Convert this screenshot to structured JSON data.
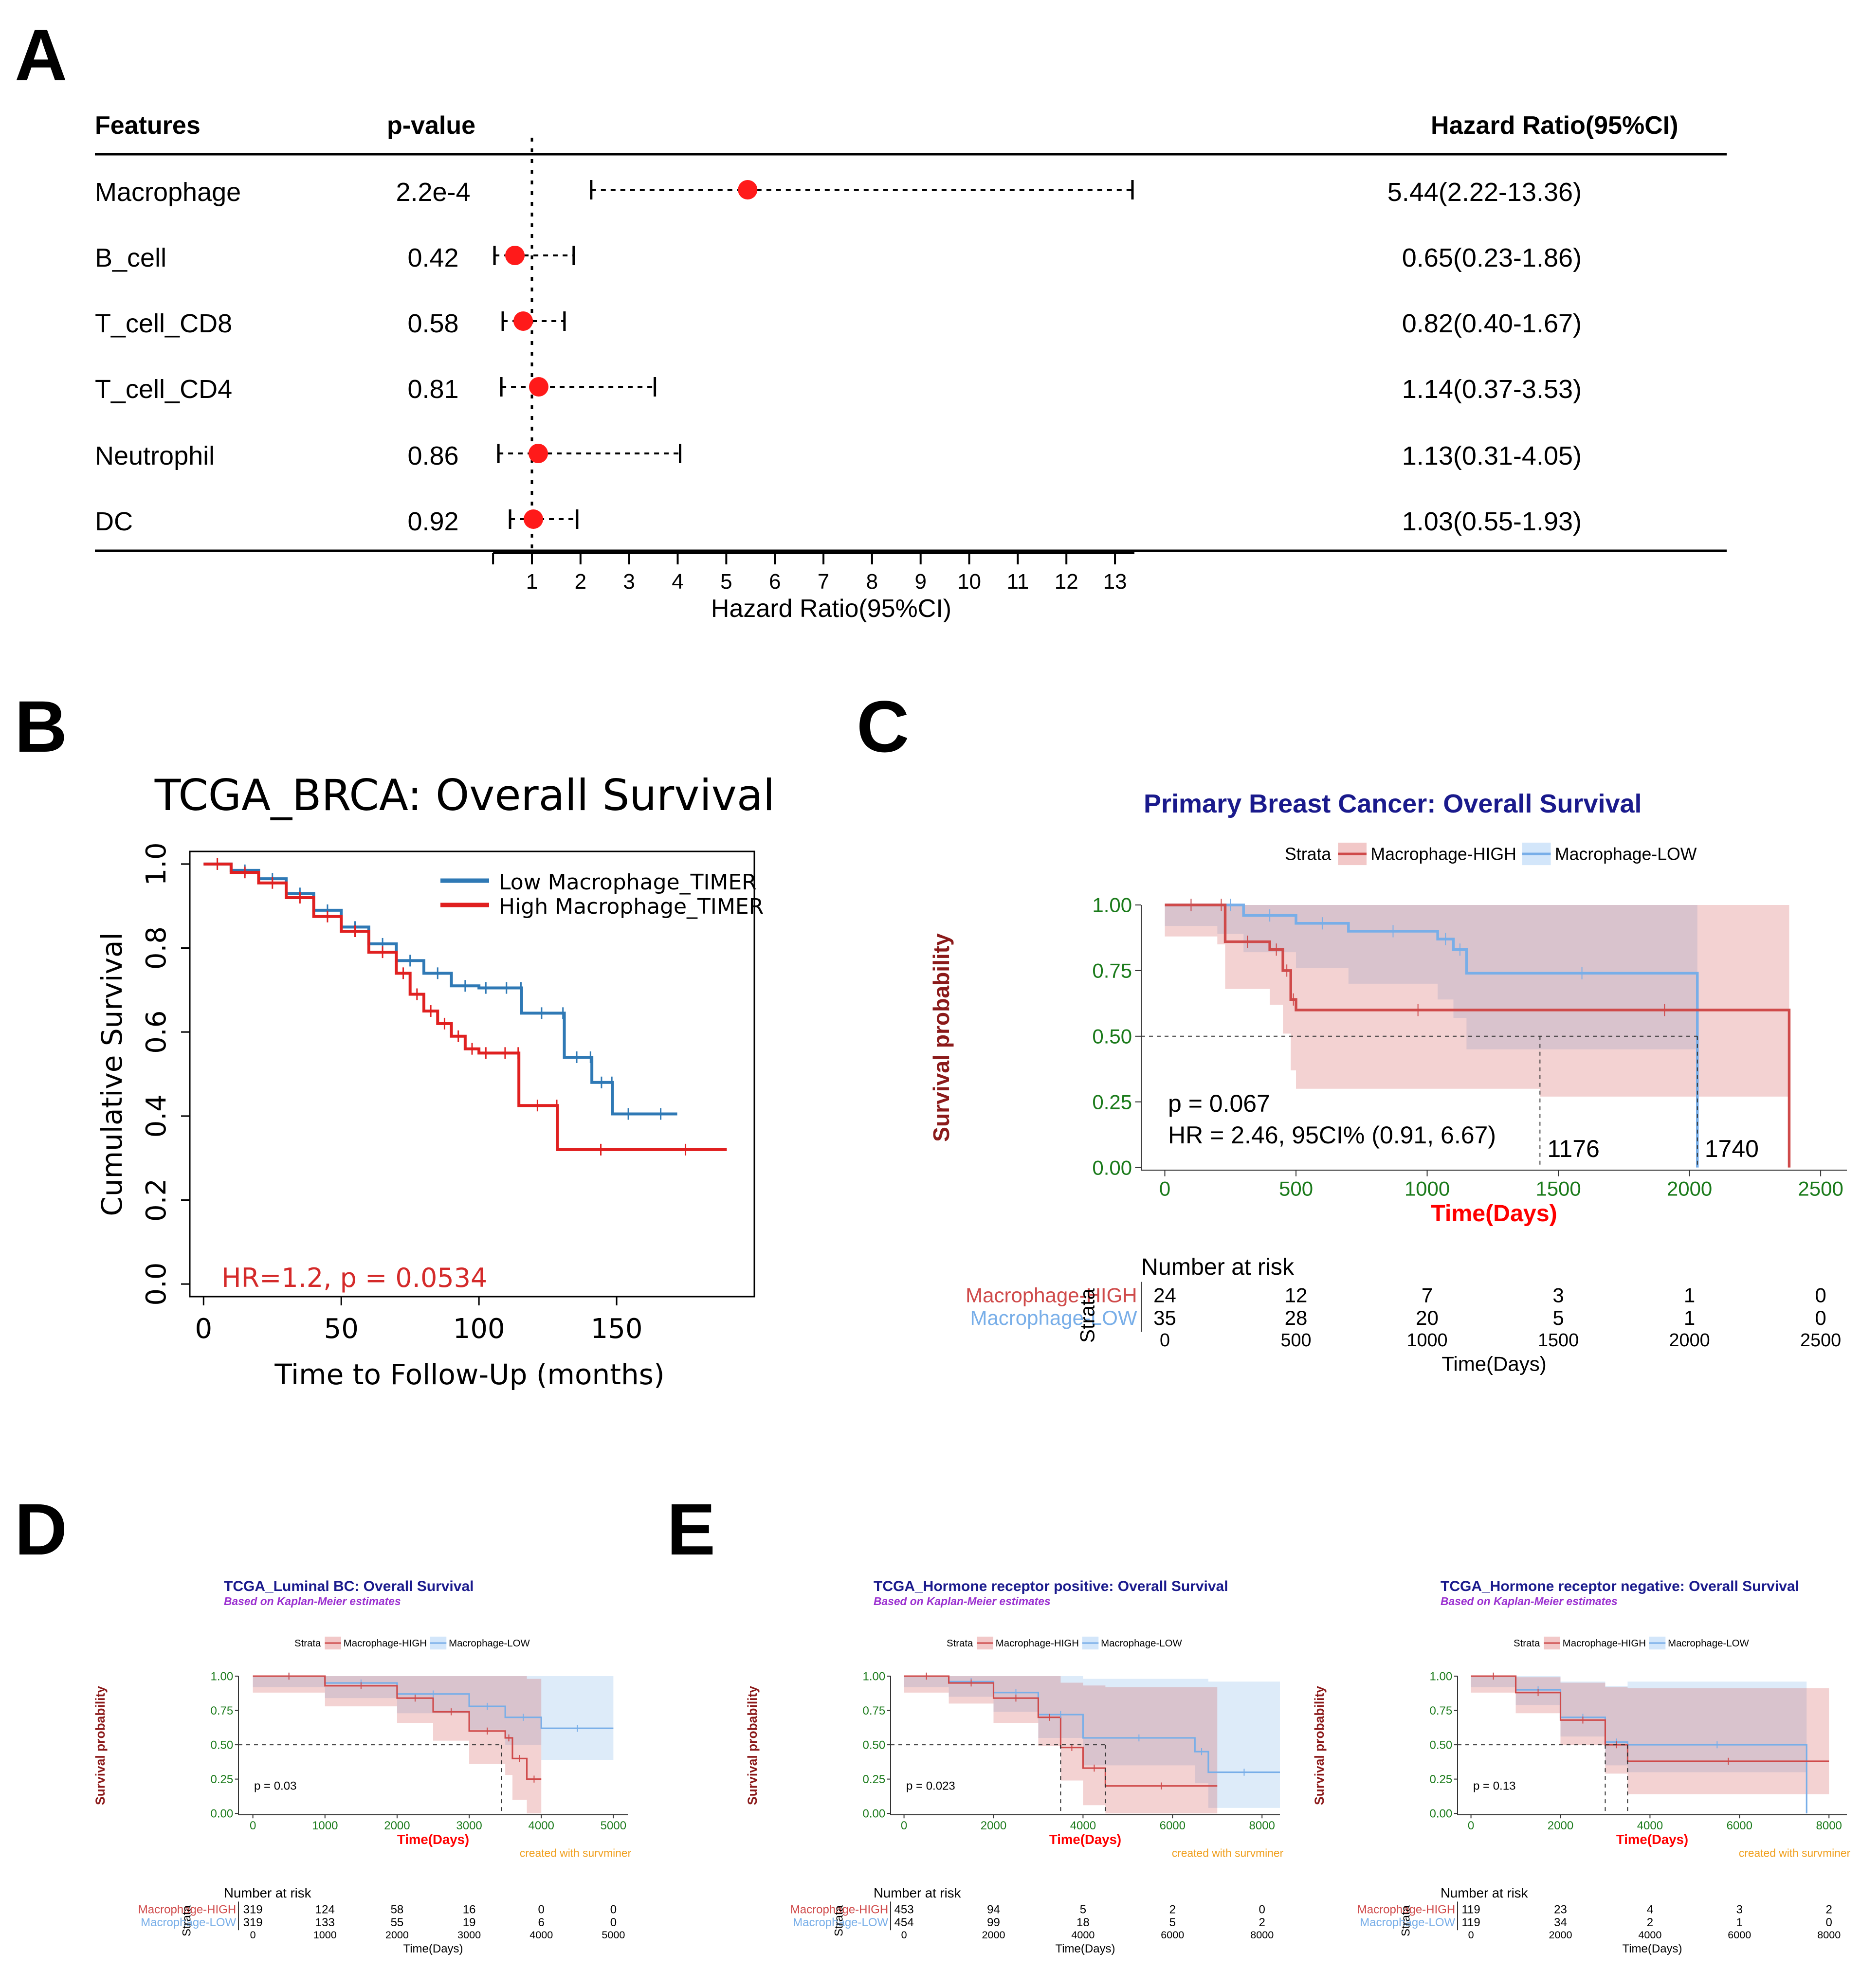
{
  "chart_data": [
    {
      "panel": "A",
      "type": "forest",
      "headers": {
        "features": "Features",
        "pvalue": "p-value",
        "hr": "Hazard Ratio(95%CI)"
      },
      "rows": [
        {
          "feature": "Macrophage",
          "p": "2.2e-4",
          "hr": 5.44,
          "lo": 2.22,
          "hi": 13.36,
          "label": "5.44(2.22-13.36)"
        },
        {
          "feature": "B_cell",
          "p": "0.42",
          "hr": 0.65,
          "lo": 0.23,
          "hi": 1.86,
          "label": "0.65(0.23-1.86)"
        },
        {
          "feature": "T_cell_CD8",
          "p": "0.58",
          "hr": 0.82,
          "lo": 0.4,
          "hi": 1.67,
          "label": "0.82(0.40-1.67)"
        },
        {
          "feature": "T_cell_CD4",
          "p": "0.81",
          "hr": 1.14,
          "lo": 0.37,
          "hi": 3.53,
          "label": "1.14(0.37-3.53)"
        },
        {
          "feature": "Neutrophil",
          "p": "0.86",
          "hr": 1.13,
          "lo": 0.31,
          "hi": 4.05,
          "label": "1.13(0.31-4.05)"
        },
        {
          "feature": "DC",
          "p": "0.92",
          "hr": 1.03,
          "lo": 0.55,
          "hi": 1.93,
          "label": "1.03(0.55-1.93)"
        }
      ],
      "xticks": [
        1,
        2,
        3,
        4,
        5,
        6,
        7,
        8,
        9,
        10,
        11,
        12,
        13
      ],
      "xlim": [
        0.2,
        13.4
      ],
      "xlabel": "Hazard Ratio(95%CI)",
      "reference": 1
    },
    {
      "panel": "B",
      "type": "line",
      "title": "TCGA_BRCA: Overall Survival",
      "xlabel": "Time to Follow-Up (months)",
      "ylabel": "Cumulative Survival",
      "xlim": [
        -5,
        200
      ],
      "ylim": [
        -0.03,
        1.03
      ],
      "xticks": [
        0,
        50,
        100,
        150
      ],
      "yticks": [
        "0.0",
        "0.2",
        "0.4",
        "0.6",
        "0.8",
        "1.0"
      ],
      "annotation": "HR=1.2, p = 0.0534",
      "series": [
        {
          "name": "Low Macrophage_TIMER",
          "color": "#2f79b5",
          "x": [
            0,
            10,
            20,
            30,
            40,
            50,
            60,
            70,
            80,
            90,
            100,
            105,
            115,
            115.5,
            130,
            131,
            140,
            141,
            148,
            148.5,
            160,
            172
          ],
          "y": [
            1.0,
            0.985,
            0.965,
            0.93,
            0.89,
            0.85,
            0.81,
            0.77,
            0.74,
            0.71,
            0.705,
            0.705,
            0.705,
            0.645,
            0.645,
            0.54,
            0.54,
            0.48,
            0.48,
            0.405,
            0.405,
            0.405
          ]
        },
        {
          "name": "High Macrophage_TIMER",
          "color": "#e02020",
          "x": [
            0,
            10,
            20,
            30,
            40,
            50,
            60,
            70,
            75,
            80,
            85,
            90,
            95,
            100,
            105,
            114,
            114.5,
            128,
            128.5,
            160,
            190
          ],
          "y": [
            1.0,
            0.98,
            0.955,
            0.92,
            0.875,
            0.84,
            0.79,
            0.74,
            0.69,
            0.65,
            0.62,
            0.59,
            0.56,
            0.55,
            0.55,
            0.55,
            0.425,
            0.425,
            0.32,
            0.32,
            0.32
          ]
        }
      ]
    },
    {
      "panel": "C",
      "type": "line",
      "title": "Primary Breast Cancer: Overall Survival",
      "legend_title": "Strata",
      "xlabel": "Time(Days)",
      "ylabel": "Survival probability",
      "xlim": [
        -90,
        2600
      ],
      "ylim": [
        -0.01,
        1.0
      ],
      "xticks": [
        0,
        500,
        1000,
        1500,
        2000,
        2500
      ],
      "yticks": [
        "0.00",
        "0.25",
        "0.50",
        "0.75",
        "1.00"
      ],
      "pvalue": "p = 0.067",
      "hr": "HR = 2.46, 95CI% (0.91, 6.67)",
      "medians": [
        {
          "x": 1176,
          "label": "1176"
        },
        {
          "x": 1740,
          "label": "1740"
        }
      ],
      "series": [
        {
          "name": "Macrophage-HIGH",
          "color": "#cf4a4a",
          "x": [
            0,
            200,
            230,
            400,
            450,
            480,
            500,
            1430,
            2380,
            2380
          ],
          "y": [
            1.0,
            1.0,
            0.86,
            0.83,
            0.75,
            0.64,
            0.6,
            0.6,
            0.45,
            0.0
          ]
        },
        {
          "name": "Macrophage-LOW",
          "color": "#78aee8",
          "x": [
            0,
            200,
            300,
            500,
            700,
            1040,
            1100,
            1150,
            2030,
            2030
          ],
          "y": [
            1.0,
            1.0,
            0.96,
            0.93,
            0.9,
            0.87,
            0.83,
            0.74,
            0.74,
            0.0
          ]
        }
      ],
      "risk_table": {
        "title": "Number at risk",
        "times": [
          0,
          500,
          1000,
          1500,
          2000,
          2500
        ],
        "rows": [
          {
            "name": "Macrophage-HIGH",
            "values": [
              24,
              12,
              7,
              3,
              1,
              0
            ]
          },
          {
            "name": "Macrophage-LOW",
            "values": [
              35,
              28,
              20,
              5,
              1,
              0
            ]
          }
        ],
        "xlabel": "Time(Days)"
      }
    },
    {
      "panel": "D",
      "type": "line",
      "title": "TCGA_Luminal BC: Overall Survival",
      "subtitle": "Based on Kaplan-Meier estimates",
      "legend_title": "Strata",
      "xlabel": "Time(Days)",
      "ylabel": "Survival probability",
      "xlim": [
        -200,
        5200
      ],
      "ylim": [
        -0.01,
        1.0
      ],
      "xticks": [
        0,
        1000,
        2000,
        3000,
        4000,
        5000
      ],
      "yticks": [
        "0.00",
        "0.25",
        "0.50",
        "0.75",
        "1.00"
      ],
      "pvalue": "p = 0.03",
      "caption": "created with survminer",
      "series": [
        {
          "name": "Macrophage-HIGH",
          "x": [
            0,
            1000,
            2000,
            2500,
            3000,
            3500,
            3600,
            3800,
            4000
          ],
          "y": [
            1.0,
            0.93,
            0.84,
            0.74,
            0.6,
            0.55,
            0.4,
            0.25,
            0.25
          ]
        },
        {
          "name": "Macrophage-LOW",
          "x": [
            0,
            1000,
            2000,
            3000,
            3500,
            4000,
            5000
          ],
          "y": [
            1.0,
            0.95,
            0.87,
            0.78,
            0.7,
            0.62,
            0.62
          ]
        }
      ],
      "risk_table": {
        "title": "Number at risk",
        "times": [
          0,
          1000,
          2000,
          3000,
          4000,
          5000
        ],
        "rows": [
          {
            "name": "Macrophage-HIGH",
            "values": [
              319,
              124,
              58,
              16,
              0,
              0
            ]
          },
          {
            "name": "Macrophage-LOW",
            "values": [
              319,
              133,
              55,
              19,
              6,
              0
            ]
          }
        ],
        "xlabel": "Time(Days)"
      }
    },
    {
      "panel": "E1",
      "type": "line",
      "title": "TCGA_Hormone receptor positive: Overall Survival",
      "subtitle": "Based on Kaplan-Meier estimates",
      "legend_title": "Strata",
      "xlabel": "Time(Days)",
      "ylabel": "Survival probability",
      "xlim": [
        -300,
        8400
      ],
      "ylim": [
        -0.01,
        1.0
      ],
      "xticks": [
        0,
        2000,
        4000,
        6000,
        8000
      ],
      "yticks": [
        "0.00",
        "0.25",
        "0.50",
        "0.75",
        "1.00"
      ],
      "pvalue": "p = 0.023",
      "caption": "created with survminer",
      "series": [
        {
          "name": "Macrophage-HIGH",
          "x": [
            0,
            1000,
            2000,
            3000,
            3500,
            4000,
            4500,
            7000
          ],
          "y": [
            1.0,
            0.95,
            0.84,
            0.7,
            0.48,
            0.33,
            0.2,
            0.2
          ]
        },
        {
          "name": "Macrophage-LOW",
          "x": [
            0,
            1000,
            2000,
            3000,
            4000,
            6500,
            6800,
            8400
          ],
          "y": [
            1.0,
            0.96,
            0.88,
            0.72,
            0.55,
            0.45,
            0.3,
            0.3
          ]
        }
      ],
      "risk_table": {
        "title": "Number at risk",
        "times": [
          0,
          2000,
          4000,
          6000,
          8000
        ],
        "rows": [
          {
            "name": "Macrophage-HIGH",
            "values": [
              453,
              94,
              5,
              2,
              0
            ]
          },
          {
            "name": "Macrophage-LOW",
            "values": [
              454,
              99,
              18,
              5,
              2
            ]
          }
        ],
        "xlabel": "Time(Days)"
      }
    },
    {
      "panel": "E2",
      "type": "line",
      "title": "TCGA_Hormone receptor negative: Overall Survival",
      "subtitle": "Based on Kaplan-Meier estimates",
      "legend_title": "Strata",
      "xlabel": "Time(Days)",
      "ylabel": "Survival probability",
      "xlim": [
        -300,
        8400
      ],
      "ylim": [
        -0.01,
        1.0
      ],
      "xticks": [
        0,
        2000,
        4000,
        6000,
        8000
      ],
      "yticks": [
        "0.00",
        "0.25",
        "0.50",
        "0.75",
        "1.00"
      ],
      "pvalue": "p = 0.13",
      "caption": "created with survminer",
      "series": [
        {
          "name": "Macrophage-HIGH",
          "x": [
            0,
            1000,
            2000,
            3000,
            3500,
            8000
          ],
          "y": [
            1.0,
            0.88,
            0.68,
            0.5,
            0.38,
            0.38
          ]
        },
        {
          "name": "Macrophage-LOW",
          "x": [
            0,
            1000,
            2000,
            3000,
            3500,
            7500,
            7500
          ],
          "y": [
            1.0,
            0.9,
            0.7,
            0.52,
            0.5,
            0.5,
            0.0
          ]
        }
      ],
      "risk_table": {
        "title": "Number at risk",
        "times": [
          0,
          2000,
          4000,
          6000,
          8000
        ],
        "rows": [
          {
            "name": "Macrophage-HIGH",
            "values": [
              119,
              23,
              4,
              3,
              2
            ]
          },
          {
            "name": "Macrophage-LOW",
            "values": [
              119,
              34,
              2,
              1,
              0
            ]
          }
        ],
        "xlabel": "Time(Days)"
      }
    }
  ],
  "panel_letters": [
    "A",
    "B",
    "C",
    "D",
    "E"
  ],
  "colors": {
    "red_dot": "#ff1a1a",
    "km_high": "#cf4a4a",
    "km_low": "#78aee8",
    "navy": "#1a1a8c",
    "purple": "#9b30d0",
    "darkred": "#8b1a1a",
    "green": "#1a7a1a",
    "orange": "#f0a020",
    "fig_b_red": "#d42a2a"
  }
}
